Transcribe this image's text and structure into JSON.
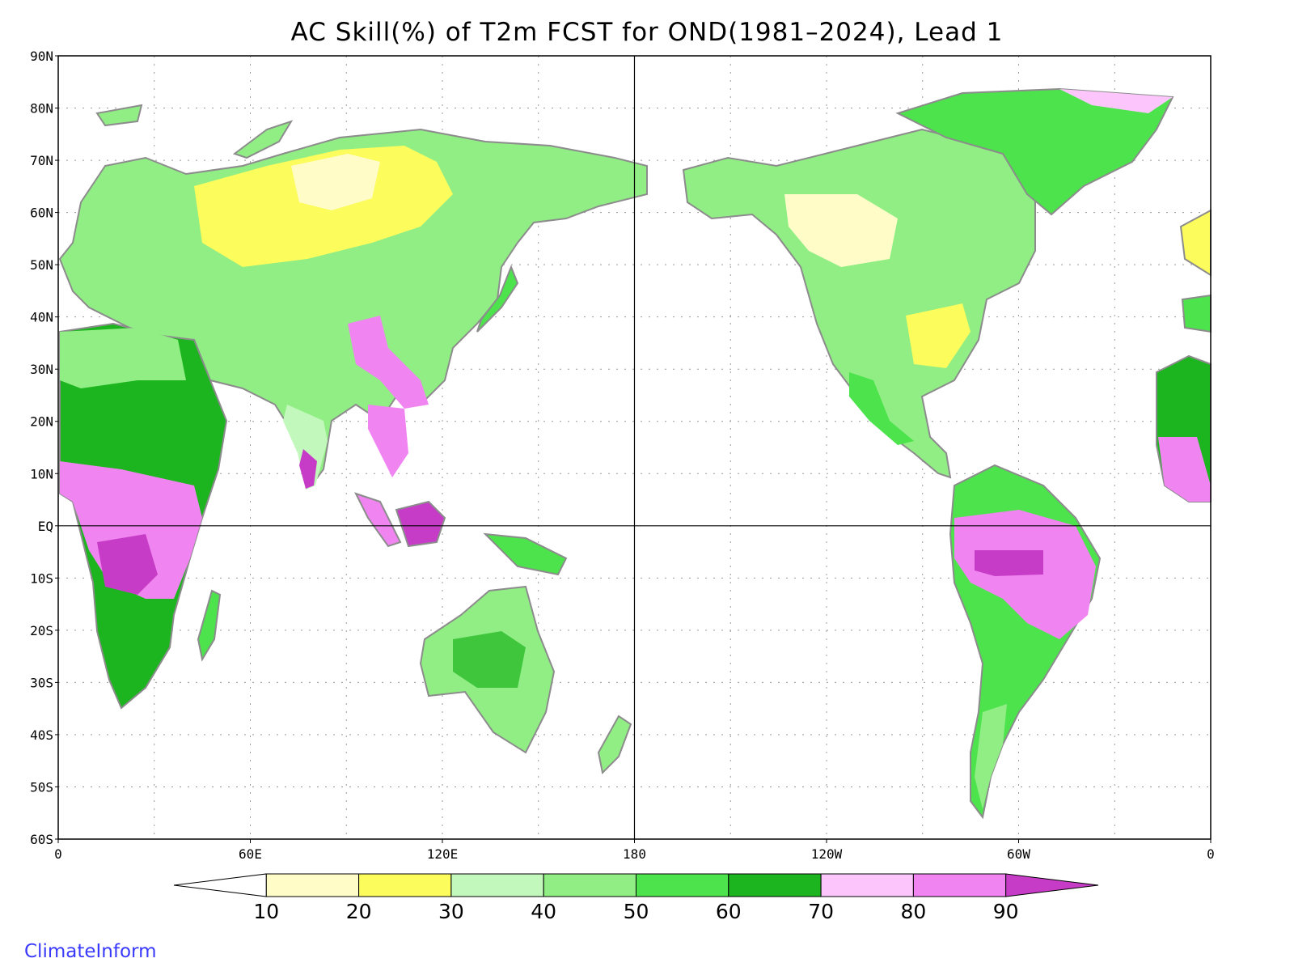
{
  "title": "AC Skill(%) of T2m FCST for OND(1981–2024), Lead 1",
  "credit": "ClimateInform",
  "map": {
    "lat_labels": [
      "90N",
      "80N",
      "70N",
      "60N",
      "50N",
      "40N",
      "30N",
      "20N",
      "10N",
      "EQ",
      "10S",
      "20S",
      "30S",
      "40S",
      "50S",
      "60S"
    ],
    "lon_labels": [
      "0",
      "60E",
      "120E",
      "180",
      "120W",
      "60W",
      "0"
    ],
    "grid": "dotted",
    "land_outline_color": "#8c8c8c",
    "ocean_color": "#ffffff"
  },
  "colorbar": {
    "labels": [
      "10",
      "20",
      "30",
      "40",
      "50",
      "60",
      "70",
      "80",
      "90"
    ],
    "colors": [
      "#ffffff",
      "#fffcc8",
      "#fcfc5c",
      "#c2f8bc",
      "#90ee84",
      "#4ce34c",
      "#1db51f",
      "#fcc6fc",
      "#f084f0",
      "#c73cc7"
    ],
    "min_arrow": "left",
    "max_arrow": "right"
  },
  "regions": [
    {
      "name": "Siberia",
      "value_class": "10-30"
    },
    {
      "name": "Africa",
      "value_class": "70-90"
    },
    {
      "name": "Amazon",
      "value_class": "80-90"
    },
    {
      "name": "Maritime Continent",
      "value_class": "80-90"
    },
    {
      "name": "Australia",
      "value_class": "40-70"
    },
    {
      "name": "North America",
      "value_class": "20-60"
    }
  ]
}
